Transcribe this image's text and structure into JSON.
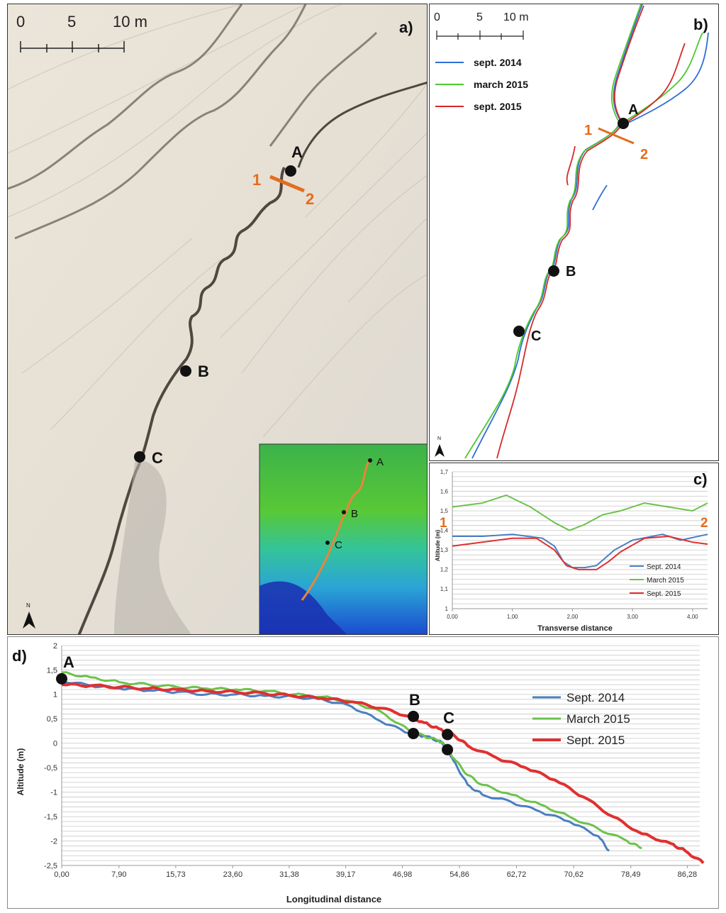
{
  "panel_a": {
    "label": "a)",
    "scale": {
      "ticks": [
        "0",
        "5",
        "10 m"
      ]
    },
    "points": [
      "A",
      "B",
      "C"
    ],
    "transect": {
      "start": "1",
      "end": "2"
    },
    "inset_points": [
      "A",
      "B",
      "C"
    ],
    "north_symbol": "N"
  },
  "panel_b": {
    "label": "b)",
    "scale": {
      "ticks": [
        "0",
        "5",
        "10 m"
      ]
    },
    "legend": [
      {
        "name": "sept. 2014",
        "color": "#2e6fd6"
      },
      {
        "name": "march 2015",
        "color": "#4cc82e"
      },
      {
        "name": "sept. 2015",
        "color": "#d42a2a"
      }
    ],
    "points": [
      "A",
      "B",
      "C"
    ],
    "transect": {
      "start": "1",
      "end": "2"
    },
    "north_symbol": "N"
  },
  "chart_data": [
    {
      "id": "c",
      "type": "line",
      "panel_label": "c)",
      "xlabel": "Transverse distance",
      "ylabel": "Altitude (m)",
      "xlim": [
        0,
        4.25
      ],
      "ylim": [
        1.0,
        1.7
      ],
      "x_ticks": [
        "0,00",
        "1,00",
        "2,00",
        "3,00",
        "4,00"
      ],
      "x_tick_values": [
        0,
        1,
        2,
        3,
        4
      ],
      "y_ticks": [
        "1",
        "1,1",
        "1,2",
        "1,3",
        "1,4",
        "1,5",
        "1,6",
        "1,7"
      ],
      "y_tick_values": [
        1.0,
        1.1,
        1.2,
        1.3,
        1.4,
        1.5,
        1.6,
        1.7
      ],
      "grid": true,
      "legend_position": "bottom-right",
      "end_labels": {
        "left": "1",
        "right": "2"
      },
      "series": [
        {
          "name": "Sept. 2014",
          "color": "#4a7fc1",
          "x": [
            0,
            0.5,
            1.0,
            1.5,
            1.7,
            1.85,
            2.0,
            2.2,
            2.4,
            2.55,
            2.7,
            3.0,
            3.5,
            3.8,
            4.25
          ],
          "y": [
            1.37,
            1.37,
            1.38,
            1.36,
            1.32,
            1.24,
            1.21,
            1.21,
            1.22,
            1.26,
            1.3,
            1.35,
            1.38,
            1.35,
            1.38
          ]
        },
        {
          "name": "March 2015",
          "color": "#6cc24a",
          "x": [
            0,
            0.5,
            0.9,
            1.3,
            1.7,
            1.95,
            2.2,
            2.5,
            2.8,
            3.2,
            3.6,
            4.0,
            4.25
          ],
          "y": [
            1.52,
            1.54,
            1.58,
            1.52,
            1.44,
            1.4,
            1.43,
            1.48,
            1.5,
            1.54,
            1.52,
            1.5,
            1.54
          ]
        },
        {
          "name": "Sept. 2015",
          "color": "#e03030",
          "x": [
            0,
            0.5,
            1.0,
            1.4,
            1.7,
            1.9,
            2.1,
            2.4,
            2.6,
            2.8,
            3.2,
            3.6,
            4.0,
            4.25
          ],
          "y": [
            1.32,
            1.34,
            1.36,
            1.36,
            1.3,
            1.22,
            1.2,
            1.2,
            1.24,
            1.29,
            1.36,
            1.37,
            1.34,
            1.33
          ]
        }
      ]
    },
    {
      "id": "d",
      "type": "line",
      "panel_label": "d)",
      "xlabel": "Longitudinal distance",
      "ylabel": "Altitude (m)",
      "xlim": [
        0,
        88
      ],
      "ylim": [
        -2.5,
        2
      ],
      "x_ticks": [
        "0,00",
        "7,90",
        "15,73",
        "23,60",
        "31,38",
        "39,17",
        "46,98",
        "54,86",
        "62,72",
        "70,62",
        "78,49",
        "86,28"
      ],
      "x_tick_values": [
        0,
        7.9,
        15.73,
        23.6,
        31.38,
        39.17,
        46.98,
        54.86,
        62.72,
        70.62,
        78.49,
        86.28
      ],
      "y_ticks": [
        "-2,5",
        "-2",
        "-1,5",
        "-1",
        "-0,5",
        "0",
        "0,5",
        "1",
        "1,5",
        "2"
      ],
      "y_tick_values": [
        -2.5,
        -2,
        -1.5,
        -1,
        -0.5,
        0,
        0.5,
        1,
        1.5,
        2
      ],
      "grid": true,
      "legend_position": "right",
      "series": [
        {
          "name": "Sept. 2014",
          "color": "#4a7fc1",
          "width": 3,
          "x": [
            0,
            4,
            8,
            12,
            16,
            20,
            24,
            28,
            32,
            36,
            40,
            44,
            48,
            50,
            52,
            53,
            54,
            56,
            58,
            62,
            66,
            70,
            74,
            75.5
          ],
          "y": [
            1.28,
            1.18,
            1.12,
            1.08,
            1.05,
            1.0,
            1.0,
            0.97,
            0.95,
            0.9,
            0.75,
            0.45,
            0.2,
            0.15,
            0.05,
            -0.05,
            -0.35,
            -0.85,
            -1.05,
            -1.2,
            -1.4,
            -1.6,
            -1.9,
            -2.2
          ]
        },
        {
          "name": "March 2015",
          "color": "#6cc24a",
          "width": 3,
          "x": [
            0,
            4,
            8,
            12,
            16,
            20,
            24,
            28,
            32,
            36,
            40,
            44,
            48,
            50,
            52,
            53,
            54,
            56,
            58,
            62,
            66,
            70,
            74,
            78,
            80
          ],
          "y": [
            1.45,
            1.35,
            1.25,
            1.2,
            1.15,
            1.12,
            1.1,
            1.07,
            1.0,
            0.95,
            0.85,
            0.65,
            0.25,
            0.15,
            0.05,
            -0.05,
            -0.3,
            -0.65,
            -0.85,
            -1.05,
            -1.25,
            -1.5,
            -1.75,
            -2.0,
            -2.15
          ]
        },
        {
          "name": "Sept. 2015",
          "color": "#e03030",
          "width": 4,
          "x": [
            0,
            4,
            8,
            12,
            16,
            20,
            24,
            28,
            32,
            36,
            40,
            44,
            48,
            50,
            52,
            54,
            56,
            60,
            64,
            68,
            72,
            76,
            80,
            84,
            86,
            88.5
          ],
          "y": [
            1.2,
            1.18,
            1.15,
            1.12,
            1.1,
            1.07,
            1.05,
            1.02,
            0.97,
            0.92,
            0.85,
            0.72,
            0.55,
            0.42,
            0.3,
            0.18,
            -0.05,
            -0.3,
            -0.5,
            -0.75,
            -1.1,
            -1.5,
            -1.85,
            -2.05,
            -2.2,
            -2.45
          ]
        }
      ],
      "markers": [
        {
          "label": "A",
          "x": 0,
          "y": 1.32
        },
        {
          "label": "B",
          "x": 48.5,
          "y": 0.55
        },
        {
          "label": "",
          "x": 48.5,
          "y": 0.2
        },
        {
          "label": "C",
          "x": 53.2,
          "y": 0.18
        },
        {
          "label": "",
          "x": 53.2,
          "y": -0.13
        }
      ]
    }
  ]
}
